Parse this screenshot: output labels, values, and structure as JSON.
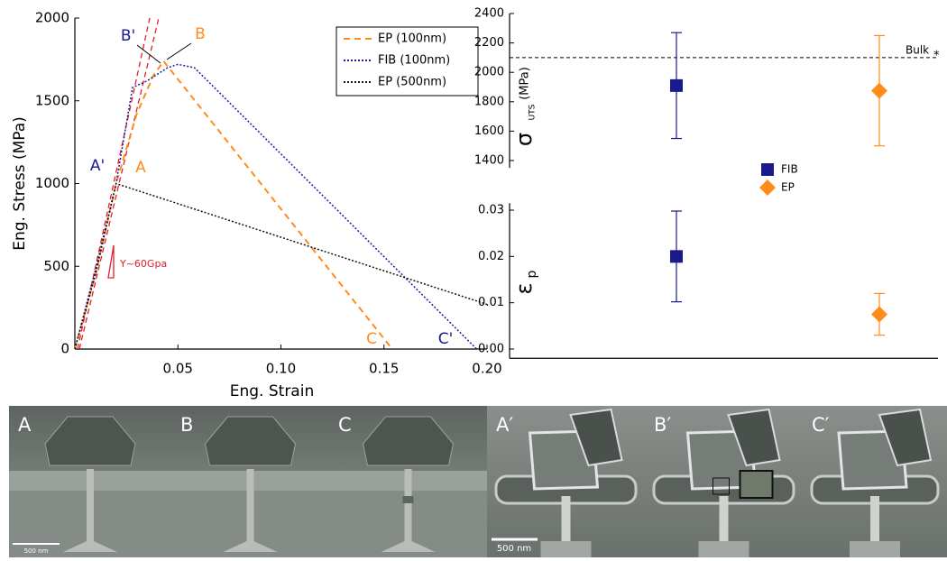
{
  "chart_data": [
    {
      "type": "line",
      "xlabel": "Eng. Strain",
      "ylabel": "Eng. Stress (MPa)",
      "xlim": [
        0,
        0.2
      ],
      "xticks": [
        0.05,
        {
          "value": 0.1,
          "label": "0.10"
        },
        0.15,
        {
          "value": 0.2,
          "label": "0.20"
        }
      ],
      "ylim": [
        0,
        2000
      ],
      "yticks": [
        0,
        500,
        1000,
        1500,
        2000
      ],
      "legend": "top-right",
      "series": [
        {
          "name": "EP (100nm)",
          "color": "#ff8c1a",
          "dash": "dashed",
          "x": [
            0,
            0.01,
            0.02,
            0.03,
            0.038,
            0.043,
            0.154
          ],
          "values": [
            0,
            450,
            1000,
            1420,
            1650,
            1740,
            0
          ]
        },
        {
          "name": "FIB (100nm)",
          "color": "#1a1aa0",
          "dash": "dotted",
          "x": [
            0,
            0.01,
            0.02,
            0.028,
            0.035,
            0.045,
            0.05,
            0.058,
            0.195
          ],
          "values": [
            0,
            480,
            1000,
            1580,
            1620,
            1700,
            1720,
            1700,
            0
          ]
        },
        {
          "name": "EP (500nm)",
          "color": "#111111",
          "dash": "dotted",
          "x": [
            0,
            0.01,
            0.02,
            0.2
          ],
          "values": [
            0,
            450,
            1000,
            270
          ]
        }
      ],
      "annotations": [
        "A'",
        "A",
        "B'",
        "B",
        "C",
        "C'",
        "Y~60Gpa"
      ]
    },
    {
      "type": "errorbar",
      "ylabel": [
        "σ",
        "UTS",
        "(MPa)"
      ],
      "ylim": [
        1350,
        2400
      ],
      "yticks": [
        1400,
        1600,
        1800,
        2000,
        2200,
        2400
      ],
      "reference": {
        "value": 2100,
        "label": "Bulk",
        "sub": "*"
      },
      "series": [
        {
          "name": "FIB",
          "color": "#1a1a8c",
          "marker": "square",
          "values": [
            1910
          ],
          "errors": [
            360
          ]
        },
        {
          "name": "EP",
          "color": "#ff8c1a",
          "marker": "diamond",
          "values": [
            1875
          ],
          "errors": [
            375
          ]
        }
      ]
    },
    {
      "type": "errorbar",
      "ylabel": [
        "ε",
        "p"
      ],
      "ylim": [
        -0.002,
        0.0315
      ],
      "yticks": [
        {
          "value": 0,
          "label": "0.00"
        },
        {
          "value": 0.01,
          "label": "0.01"
        },
        {
          "value": 0.02,
          "label": "0.02"
        },
        {
          "value": 0.03,
          "label": "0.03"
        }
      ],
      "series": [
        {
          "color": "#1a1a8c",
          "marker": "square",
          "values": [
            0.02
          ],
          "errors": [
            0.0098
          ]
        },
        {
          "color": "#ff8c1a",
          "marker": "diamond",
          "values": [
            0.0075
          ],
          "errors": [
            0.0045
          ]
        }
      ]
    }
  ],
  "images": {
    "panels": [
      "A",
      "B",
      "C",
      "A′",
      "B′",
      "C′"
    ],
    "scale_bars": [
      "500 nm",
      "500 nm"
    ]
  }
}
